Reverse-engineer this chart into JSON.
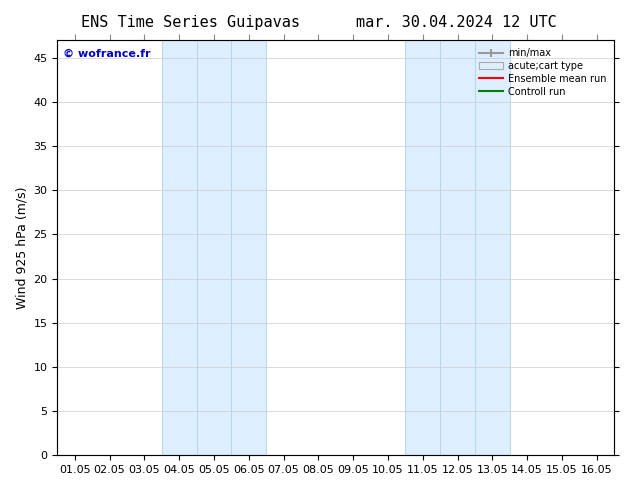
{
  "title_left": "ENS Time Series Guipavas",
  "title_right": "mar. 30.04.2024 12 UTC",
  "ylabel": "Wind 925 hPa (m/s)",
  "watermark": "© wofrance.fr",
  "xmin": 0.0,
  "xmax": 16.0,
  "ymin": 0,
  "ymax": 47,
  "yticks": [
    0,
    5,
    10,
    15,
    20,
    25,
    30,
    35,
    40,
    45
  ],
  "xtick_labels": [
    "01.05",
    "02.05",
    "03.05",
    "04.05",
    "05.05",
    "06.05",
    "07.05",
    "08.05",
    "09.05",
    "10.05",
    "11.05",
    "12.05",
    "13.05",
    "14.05",
    "15.05",
    "16.05"
  ],
  "xtick_positions": [
    0.5,
    1.5,
    2.5,
    3.5,
    4.5,
    5.5,
    6.5,
    7.5,
    8.5,
    9.5,
    10.5,
    11.5,
    12.5,
    13.5,
    14.5,
    15.5
  ],
  "shaded_bands": [
    {
      "xstart": 3,
      "xend": 6,
      "color": "#ddeeff"
    },
    {
      "xstart": 10,
      "xend": 13,
      "color": "#ddeeff"
    }
  ],
  "vertical_lines": [
    3,
    4,
    5,
    6,
    10,
    11,
    12,
    13
  ],
  "background_color": "#ffffff",
  "plot_bg_color": "#ffffff",
  "grid_color": "#cccccc",
  "legend_items": [
    {
      "label": "min/max",
      "color": "#999999",
      "style": "errorbar"
    },
    {
      "label": "acute;cart type",
      "color": "#ddeeff",
      "style": "fill"
    },
    {
      "label": "Ensemble mean run",
      "color": "red",
      "style": "line"
    },
    {
      "label": "Controll run",
      "color": "green",
      "style": "line"
    }
  ],
  "title_fontsize": 11,
  "tick_fontsize": 8,
  "ylabel_fontsize": 9,
  "watermark_color": "#0000cc"
}
